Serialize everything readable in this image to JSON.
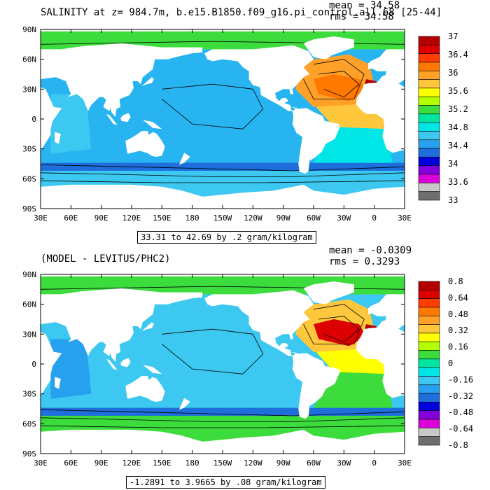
{
  "chart_data": [
    {
      "type": "heatmap",
      "title": "SALINITY at z= 984.7m, b.e15.B1850.f09_g16.pi_control.all.68 [25-44]",
      "stats": {
        "mean": "mean = 34.58",
        "rms": "rms = 34.58"
      },
      "range_label": "33.31 to 42.69 by .2 gram/kilogram",
      "x_tick_labels": [
        "30E",
        "60E",
        "90E",
        "120E",
        "150E",
        "180",
        "150W",
        "120W",
        "90W",
        "60W",
        "30W",
        "0",
        "30E"
      ],
      "y_tick_labels": [
        "90N",
        "60N",
        "30N",
        "0",
        "30S",
        "60S",
        "90S"
      ],
      "colorbar": {
        "labels": [
          "37",
          "36.4",
          "36",
          "35.6",
          "35.2",
          "34.8",
          "34.4",
          "34",
          "33.6",
          "33"
        ],
        "colors": [
          "#b40000",
          "#dc0000",
          "#ff3c00",
          "#ff7800",
          "#ffa028",
          "#ffc83c",
          "#ffff00",
          "#b4ff00",
          "#3cdc3c",
          "#00e6a0",
          "#00e6e6",
          "#3cc8f0",
          "#28a0f0",
          "#1e6edc",
          "#0000dc",
          "#8200dc",
          "#dc00dc",
          "#c8c8c8",
          "#6e6e6e"
        ]
      },
      "fields": {
        "background": "#28b4f0",
        "arctic": "#3cdc3c",
        "atlantic_north": "#ffa028",
        "atlantic_core": "#ff7800",
        "med": "#b40000",
        "southern": "#3cc8f0",
        "deep": "#1e6edc",
        "indian_west": "#3cc8f0",
        "atl_south": "#00e6e6",
        "atl_tropic": "#ffc83c"
      }
    },
    {
      "type": "heatmap",
      "title": "(MODEL - LEVITUS/PHC2)",
      "stats": {
        "mean": "mean = -0.0309",
        "rms": "rms = 0.3293"
      },
      "range_label": "-1.2891 to 3.9665 by .08 gram/kilogram",
      "x_tick_labels": [
        "30E",
        "60E",
        "90E",
        "120E",
        "150E",
        "180",
        "150W",
        "120W",
        "90W",
        "60W",
        "30W",
        "0",
        "30E"
      ],
      "y_tick_labels": [
        "90N",
        "60N",
        "30N",
        "0",
        "30S",
        "60S",
        "90S"
      ],
      "colorbar": {
        "labels": [
          "0.8",
          "0.64",
          "0.48",
          "0.32",
          "0.16",
          "0",
          "-0.16",
          "-0.32",
          "-0.48",
          "-0.64",
          "-0.8"
        ],
        "colors": [
          "#b40000",
          "#dc0000",
          "#ff3c00",
          "#ff7800",
          "#ffa028",
          "#ffc83c",
          "#ffff00",
          "#b4ff00",
          "#3cdc3c",
          "#00e6a0",
          "#00e6e6",
          "#3cc8f0",
          "#28a0f0",
          "#1e6edc",
          "#0000dc",
          "#8200dc",
          "#dc00dc",
          "#c8c8c8",
          "#6e6e6e"
        ]
      },
      "fields": {
        "background": "#3cc8f0",
        "arctic": "#3cdc3c",
        "atlantic_north": "#ffc83c",
        "atlantic_core": "#dc0000",
        "med": "#b40000",
        "southern": "#3cdc3c",
        "deep": "#1e6edc",
        "indian_west": "#28a0f0",
        "atl_south": "#3cdc3c",
        "atl_tropic": "#ffff00"
      }
    }
  ]
}
